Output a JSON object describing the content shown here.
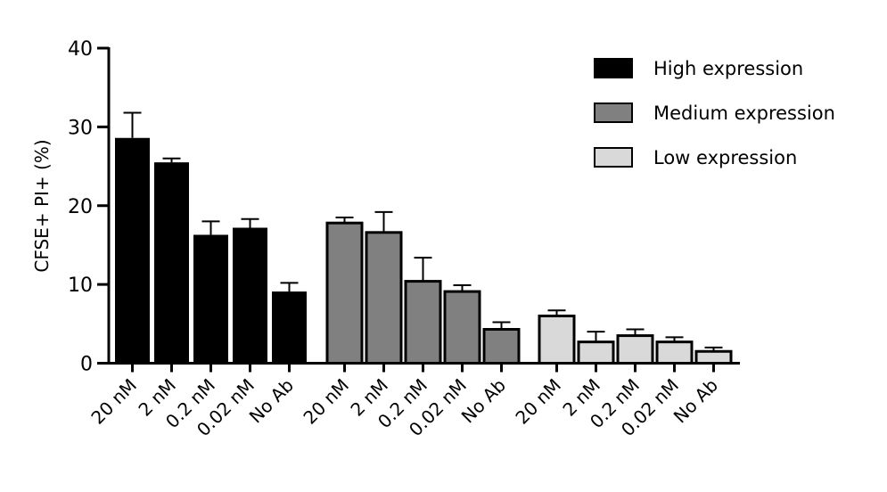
{
  "chart_data": {
    "type": "bar",
    "title": "",
    "xlabel": "",
    "ylabel": "CFSE+ PI+ (%)",
    "ylim": [
      0,
      40
    ],
    "yticks": [
      0,
      10,
      20,
      30,
      40
    ],
    "grid": false,
    "legend_position": "top-right",
    "categories": [
      "20 nM",
      "2 nM",
      "0.2 nM",
      "0.02 nM",
      "No Ab"
    ],
    "series": [
      {
        "name": "High expression",
        "color": "#000000",
        "values": [
          28.6,
          25.5,
          16.3,
          17.2,
          9.1
        ],
        "errors": [
          3.2,
          0.5,
          1.7,
          1.1,
          1.1
        ]
      },
      {
        "name": "Medium expression",
        "color": "#808080",
        "values": [
          17.8,
          16.6,
          10.4,
          9.1,
          4.3
        ],
        "errors": [
          0.7,
          2.6,
          3.0,
          0.8,
          0.9
        ]
      },
      {
        "name": "Low expression",
        "color": "#d9d9d9",
        "values": [
          6.0,
          2.7,
          3.5,
          2.7,
          1.5
        ],
        "errors": [
          0.7,
          1.3,
          0.8,
          0.6,
          0.5
        ]
      }
    ]
  }
}
